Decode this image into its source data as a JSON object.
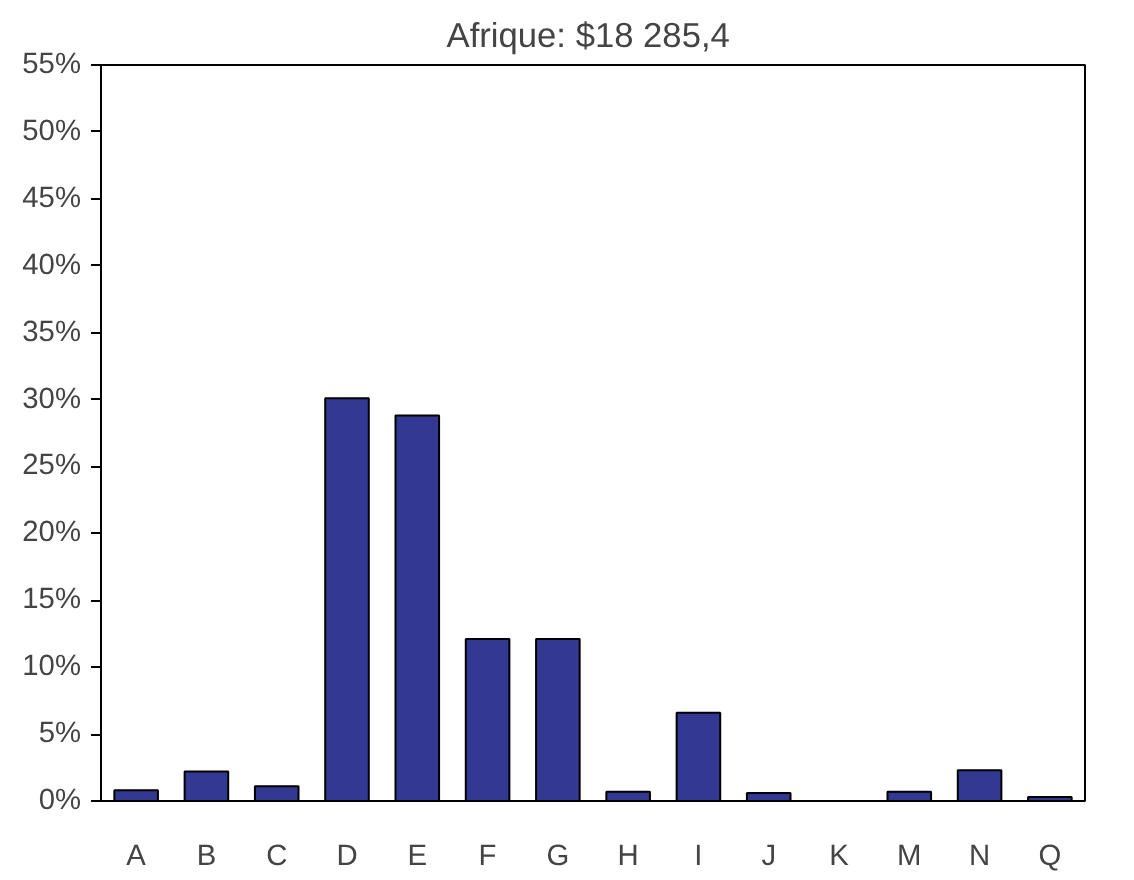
{
  "chart_data": {
    "type": "bar",
    "title": "Afrique:  $18 285,4",
    "categories": [
      "A",
      "B",
      "C",
      "D",
      "E",
      "F",
      "G",
      "H",
      "I",
      "J",
      "K",
      "M",
      "N",
      "Q"
    ],
    "values": [
      0.8,
      2.2,
      1.1,
      30.1,
      28.8,
      12.1,
      12.1,
      0.7,
      6.6,
      0.6,
      null,
      0.7,
      2.3,
      0.3
    ],
    "color": "#333993",
    "ylim": [
      0,
      55
    ],
    "yticks": [
      {
        "value": 0,
        "label": "0%"
      },
      {
        "value": 5,
        "label": "5%"
      },
      {
        "value": 10,
        "label": "10%"
      },
      {
        "value": 15,
        "label": "15%"
      },
      {
        "value": 20,
        "label": "20%"
      },
      {
        "value": 25,
        "label": "25%"
      },
      {
        "value": 30,
        "label": "30%"
      },
      {
        "value": 35,
        "label": "35%"
      },
      {
        "value": 40,
        "label": "40%"
      },
      {
        "value": 45,
        "label": "45%"
      },
      {
        "value": 50,
        "label": "50%"
      },
      {
        "value": 55,
        "label": "55%"
      }
    ],
    "grid": false
  }
}
